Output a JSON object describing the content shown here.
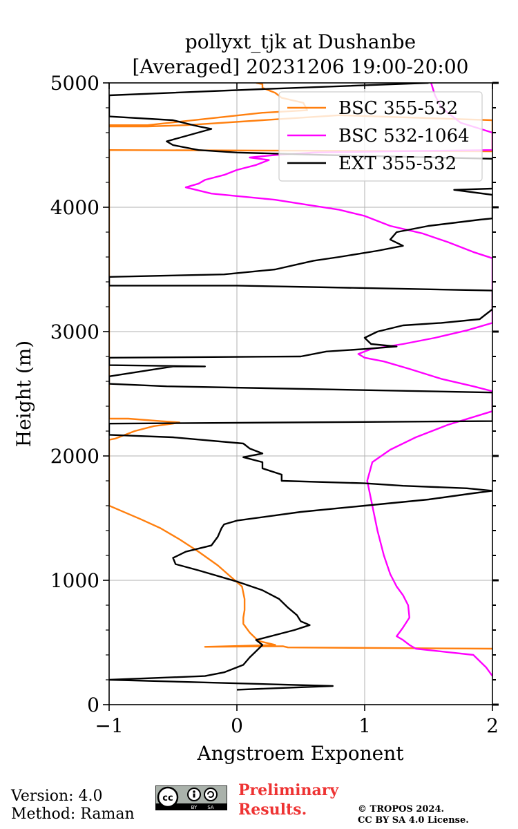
{
  "chart_data": {
    "type": "line",
    "title_line1": "pollyxt_tjk at Dushanbe",
    "title_line2": "[Averaged] 20231206 19:00-20:00",
    "xlabel": "Angstroem Exponent",
    "ylabel": "Height (m)",
    "xlim": [
      -1,
      2
    ],
    "ylim": [
      0,
      5000
    ],
    "xticks": [
      -1,
      0,
      1,
      2
    ],
    "xtick_labels": [
      "−1",
      "0",
      "1",
      "2"
    ],
    "yticks": [
      0,
      1000,
      2000,
      3000,
      4000,
      5000
    ],
    "ytick_labels": [
      "0",
      "1000",
      "2000",
      "3000",
      "4000",
      "5000"
    ],
    "grid": true,
    "legend_position": "top-right",
    "series": [
      {
        "name": "BSC 355-532",
        "color": "#ff7f0e",
        "points": [
          [
            2.0,
            450
          ],
          [
            1.2,
            455
          ],
          [
            0.4,
            460
          ],
          [
            0.36,
            470
          ],
          [
            -0.25,
            465
          ],
          [
            0.3,
            480
          ],
          [
            0.18,
            510
          ],
          [
            0.15,
            530
          ],
          [
            0.1,
            580
          ],
          [
            0.05,
            650
          ],
          [
            0.05,
            700
          ],
          [
            0.06,
            760
          ],
          [
            0.06,
            850
          ],
          [
            0.04,
            950
          ],
          [
            -0.05,
            1030
          ],
          [
            -0.15,
            1120
          ],
          [
            -0.3,
            1230
          ],
          [
            -0.45,
            1330
          ],
          [
            -0.6,
            1420
          ],
          [
            -0.75,
            1490
          ],
          [
            -1.0,
            1600
          ],
          [
            -1.0,
            2130
          ],
          [
            -0.95,
            2140
          ],
          [
            -0.8,
            2200
          ],
          [
            -0.65,
            2240
          ],
          [
            -0.5,
            2260
          ],
          [
            -0.45,
            2270
          ],
          [
            -0.6,
            2280
          ],
          [
            -0.85,
            2300
          ],
          [
            -1.0,
            2300
          ],
          [
            -1.0,
            4460
          ],
          [
            2.0,
            4450
          ],
          [
            2.0,
            4700
          ],
          [
            0.8,
            4740
          ],
          [
            -0.4,
            4660
          ],
          [
            -0.7,
            4650
          ],
          [
            -1.0,
            4650
          ],
          [
            -1.0,
            4660
          ],
          [
            -0.7,
            4660
          ],
          [
            0.2,
            4760
          ],
          [
            0.55,
            4780
          ],
          [
            0.52,
            4840
          ],
          [
            0.35,
            4880
          ],
          [
            0.3,
            4920
          ],
          [
            0.2,
            4960
          ],
          [
            0.2,
            4990
          ],
          [
            0.15,
            5000
          ]
        ]
      },
      {
        "name": "BSC 532-1064",
        "color": "#ff00ff",
        "points": [
          [
            2.0,
            230
          ],
          [
            1.95,
            300
          ],
          [
            1.85,
            400
          ],
          [
            1.4,
            450
          ],
          [
            1.35,
            480
          ],
          [
            1.3,
            520
          ],
          [
            1.25,
            550
          ],
          [
            1.3,
            620
          ],
          [
            1.35,
            700
          ],
          [
            1.34,
            800
          ],
          [
            1.3,
            880
          ],
          [
            1.25,
            950
          ],
          [
            1.2,
            1050
          ],
          [
            1.15,
            1200
          ],
          [
            1.1,
            1400
          ],
          [
            1.06,
            1600
          ],
          [
            1.02,
            1800
          ],
          [
            1.06,
            1950
          ],
          [
            1.2,
            2050
          ],
          [
            1.4,
            2150
          ],
          [
            1.65,
            2250
          ],
          [
            2.0,
            2360
          ],
          [
            2.0,
            2520
          ],
          [
            1.85,
            2560
          ],
          [
            1.6,
            2620
          ],
          [
            1.35,
            2700
          ],
          [
            1.15,
            2760
          ],
          [
            1.0,
            2790
          ],
          [
            0.95,
            2820
          ],
          [
            1.05,
            2860
          ],
          [
            1.3,
            2900
          ],
          [
            1.55,
            2950
          ],
          [
            1.8,
            3010
          ],
          [
            2.0,
            3070
          ],
          [
            2.0,
            3590
          ],
          [
            1.85,
            3640
          ],
          [
            1.65,
            3720
          ],
          [
            1.45,
            3790
          ],
          [
            1.2,
            3850
          ],
          [
            1.0,
            3930
          ],
          [
            0.8,
            3980
          ],
          [
            0.55,
            4020
          ],
          [
            0.3,
            4060
          ],
          [
            0.0,
            4090
          ],
          [
            -0.2,
            4110
          ],
          [
            -0.4,
            4160
          ],
          [
            -0.3,
            4190
          ],
          [
            -0.25,
            4220
          ],
          [
            -0.1,
            4260
          ],
          [
            0.0,
            4300
          ],
          [
            0.15,
            4340
          ],
          [
            0.25,
            4380
          ],
          [
            0.1,
            4400
          ],
          [
            0.3,
            4420
          ],
          [
            0.6,
            4440
          ],
          [
            1.2,
            4450
          ],
          [
            2.0,
            4460
          ],
          [
            2.0,
            4600
          ],
          [
            1.75,
            4680
          ],
          [
            1.6,
            4800
          ],
          [
            1.55,
            4900
          ],
          [
            1.52,
            5000
          ]
        ]
      },
      {
        "name": "EXT 355-532",
        "color": "#000000",
        "points": [
          [
            0.0,
            120
          ],
          [
            0.75,
            150
          ],
          [
            -1.0,
            200
          ],
          [
            -0.25,
            230
          ],
          [
            -0.1,
            260
          ],
          [
            0.05,
            320
          ],
          [
            0.1,
            380
          ],
          [
            0.15,
            430
          ],
          [
            0.2,
            480
          ],
          [
            0.15,
            520
          ],
          [
            0.45,
            600
          ],
          [
            0.57,
            640
          ],
          [
            0.5,
            670
          ],
          [
            0.47,
            720
          ],
          [
            0.4,
            780
          ],
          [
            0.33,
            850
          ],
          [
            0.2,
            920
          ],
          [
            0.0,
            990
          ],
          [
            -0.3,
            1080
          ],
          [
            -0.48,
            1130
          ],
          [
            -0.5,
            1180
          ],
          [
            -0.4,
            1230
          ],
          [
            -0.2,
            1280
          ],
          [
            -0.15,
            1350
          ],
          [
            -0.12,
            1420
          ],
          [
            -0.1,
            1450
          ],
          [
            0.0,
            1480
          ],
          [
            0.5,
            1550
          ],
          [
            1.0,
            1600
          ],
          [
            1.5,
            1650
          ],
          [
            1.85,
            1700
          ],
          [
            2.0,
            1720
          ],
          [
            1.8,
            1740
          ],
          [
            1.3,
            1760
          ],
          [
            1.0,
            1780
          ],
          [
            0.35,
            1800
          ],
          [
            0.35,
            1850
          ],
          [
            0.2,
            1900
          ],
          [
            0.2,
            1950
          ],
          [
            0.05,
            1990
          ],
          [
            0.2,
            2020
          ],
          [
            0.1,
            2060
          ],
          [
            0.05,
            2100
          ],
          [
            -0.5,
            2150
          ],
          [
            -1.0,
            2170
          ],
          [
            -1.0,
            2260
          ],
          [
            2.0,
            2280
          ],
          [
            2.0,
            2510
          ],
          [
            -0.55,
            2560
          ],
          [
            -1.0,
            2580
          ],
          [
            -1.0,
            2640
          ],
          [
            -0.5,
            2720
          ],
          [
            -0.25,
            2720
          ],
          [
            -1.0,
            2730
          ],
          [
            -1.0,
            2790
          ],
          [
            0.5,
            2800
          ],
          [
            0.7,
            2840
          ],
          [
            1.0,
            2860
          ],
          [
            1.25,
            2880
          ],
          [
            1.05,
            2900
          ],
          [
            1.0,
            2950
          ],
          [
            1.1,
            3000
          ],
          [
            1.3,
            3050
          ],
          [
            1.6,
            3070
          ],
          [
            1.9,
            3100
          ],
          [
            2.0,
            3180
          ],
          [
            2.0,
            3330
          ],
          [
            0.0,
            3370
          ],
          [
            -1.0,
            3370
          ],
          [
            -1.0,
            3440
          ],
          [
            -0.1,
            3460
          ],
          [
            0.3,
            3500
          ],
          [
            0.6,
            3570
          ],
          [
            0.8,
            3600
          ],
          [
            1.1,
            3650
          ],
          [
            1.3,
            3690
          ],
          [
            1.2,
            3740
          ],
          [
            1.25,
            3800
          ],
          [
            1.5,
            3850
          ],
          [
            1.9,
            3900
          ],
          [
            2.0,
            3910
          ],
          [
            2.0,
            4100
          ],
          [
            1.7,
            4140
          ],
          [
            2.0,
            4150
          ],
          [
            2.0,
            4390
          ],
          [
            0.7,
            4420
          ],
          [
            0.0,
            4440
          ],
          [
            -0.3,
            4460
          ],
          [
            -0.5,
            4500
          ],
          [
            -0.55,
            4530
          ],
          [
            -0.2,
            4630
          ],
          [
            -0.3,
            4650
          ],
          [
            -0.5,
            4700
          ],
          [
            -1.0,
            4730
          ],
          [
            -1.0,
            4900
          ],
          [
            0.2,
            4950
          ],
          [
            1.5,
            5000
          ]
        ]
      }
    ]
  },
  "footer": {
    "version": "Version: 4.0",
    "method": "Method: Raman",
    "preliminary_line1": "Preliminary",
    "preliminary_line2": "Results.",
    "copyright_line1": "© TROPOS 2024.",
    "copyright_line2": "CC BY SA 4.0 License.",
    "license_badge": "cc-by-sa-icon",
    "license_by": "BY",
    "license_sa": "SA",
    "preliminary_color": "#ee3333"
  }
}
